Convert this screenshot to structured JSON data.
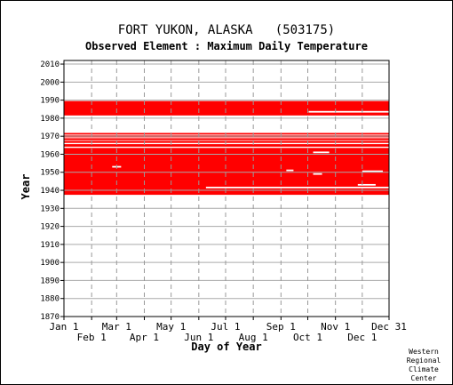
{
  "chart_data": {
    "type": "heatmap",
    "title": "FORT YUKON, ALASKA   (503175)",
    "subtitle": "Observed Element : Maximum Daily Temperature",
    "xlabel": "Day of Year",
    "ylabel": "Year",
    "ylim": [
      1870,
      2012
    ],
    "xlim": [
      1,
      365
    ],
    "y_ticks": [
      1870,
      1880,
      1890,
      1900,
      1910,
      1920,
      1930,
      1940,
      1950,
      1960,
      1970,
      1980,
      1990,
      2000,
      2010
    ],
    "x_ticks_upper": [
      {
        "label": "Jan 1",
        "day": 1
      },
      {
        "label": "Mar 1",
        "day": 60
      },
      {
        "label": "May 1",
        "day": 121
      },
      {
        "label": "Jul 1",
        "day": 182
      },
      {
        "label": "Sep 1",
        "day": 244
      },
      {
        "label": "Nov 1",
        "day": 305
      },
      {
        "label": "Dec 31",
        "day": 365
      }
    ],
    "x_ticks_lower": [
      {
        "label": "Feb 1",
        "day": 32
      },
      {
        "label": "Apr 1",
        "day": 91
      },
      {
        "label": "Jun 1",
        "day": 152
      },
      {
        "label": "Aug 1",
        "day": 213
      },
      {
        "label": "Oct 1",
        "day": 274
      },
      {
        "label": "Dec 1",
        "day": 335
      }
    ],
    "grid": true,
    "data_color": "#ff0000",
    "coverage_bands": [
      {
        "year_start": 1937.5,
        "year_end": 1963.5,
        "day_start": 1,
        "day_end": 365
      },
      {
        "year_start": 1964.2,
        "year_end": 1965.6,
        "day_start": 1,
        "day_end": 365
      },
      {
        "year_start": 1966.3,
        "year_end": 1967.4,
        "day_start": 1,
        "day_end": 365
      },
      {
        "year_start": 1967.8,
        "year_end": 1968.9,
        "day_start": 1,
        "day_end": 365
      },
      {
        "year_start": 1969.4,
        "year_end": 1970.5,
        "day_start": 1,
        "day_end": 365
      },
      {
        "year_start": 1970.9,
        "year_end": 1971.8,
        "day_start": 1,
        "day_end": 365
      },
      {
        "year_start": 1981.5,
        "year_end": 1989.5,
        "day_start": 1,
        "day_end": 365
      }
    ],
    "gaps": [
      {
        "year": 1941.5,
        "day_start": 160,
        "day_end": 365
      },
      {
        "year": 1953.0,
        "day_start": 55,
        "day_end": 65
      },
      {
        "year": 1951.0,
        "day_start": 250,
        "day_end": 258
      },
      {
        "year": 1949.0,
        "day_start": 280,
        "day_end": 290
      },
      {
        "year": 1961.0,
        "day_start": 280,
        "day_end": 298
      },
      {
        "year": 1950.5,
        "day_start": 335,
        "day_end": 358
      },
      {
        "year": 1943.0,
        "day_start": 330,
        "day_end": 350
      },
      {
        "year": 1983.5,
        "day_start": 275,
        "day_end": 365
      }
    ]
  },
  "credit": {
    "line1": "Western",
    "line2": "Regional",
    "line3": "Climate",
    "line4": "Center"
  }
}
